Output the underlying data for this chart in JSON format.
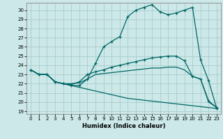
{
  "xlabel": "Humidex (Indice chaleur)",
  "bg_color": "#cce8e8",
  "grid_color": "#aacccc",
  "line_color": "#006666",
  "xlim": [
    -0.5,
    23.5
  ],
  "ylim": [
    18.7,
    30.8
  ],
  "xticks": [
    0,
    1,
    2,
    3,
    4,
    5,
    6,
    7,
    8,
    9,
    10,
    11,
    12,
    13,
    14,
    15,
    16,
    17,
    18,
    19,
    20,
    21,
    22,
    23
  ],
  "yticks": [
    19,
    20,
    21,
    22,
    23,
    24,
    25,
    26,
    27,
    28,
    29,
    30
  ],
  "line1_x": [
    0,
    1,
    2,
    3,
    4,
    5,
    6,
    7,
    8,
    9,
    10,
    11,
    12,
    13,
    14,
    15,
    16,
    17,
    18,
    19,
    20,
    21,
    22,
    23
  ],
  "line1_y": [
    23.5,
    23.0,
    23.0,
    22.2,
    22.0,
    21.8,
    21.8,
    22.5,
    24.2,
    26.0,
    26.6,
    27.1,
    29.3,
    30.0,
    30.3,
    30.6,
    29.8,
    29.5,
    29.7,
    30.0,
    30.3,
    24.6,
    22.3,
    19.3
  ],
  "line1_markers": [
    0,
    1,
    2,
    3,
    4,
    5,
    6,
    7,
    8,
    9,
    10,
    11,
    12,
    13,
    14,
    15,
    16,
    17,
    18,
    19,
    20,
    21,
    22,
    23
  ],
  "line2_x": [
    0,
    1,
    2,
    3,
    4,
    5,
    6,
    7,
    8,
    9,
    10,
    11,
    12,
    13,
    14,
    15,
    16,
    17,
    18,
    19,
    20,
    21,
    22,
    23
  ],
  "line2_y": [
    23.5,
    23.0,
    23.0,
    22.2,
    22.0,
    21.9,
    22.2,
    23.0,
    23.3,
    23.5,
    23.8,
    24.0,
    24.2,
    24.4,
    24.6,
    24.8,
    24.9,
    25.0,
    25.0,
    24.5,
    22.8,
    22.5,
    20.1,
    19.4
  ],
  "line2_markers": [
    0,
    1,
    2,
    3,
    4,
    5,
    6,
    7,
    8,
    9,
    10,
    11,
    12,
    13,
    14,
    15,
    16,
    17,
    18,
    19,
    20,
    21,
    22,
    23
  ],
  "line3_x": [
    0,
    1,
    2,
    3,
    4,
    5,
    6,
    7,
    8,
    9,
    10,
    11,
    12,
    13,
    14,
    15,
    16,
    17,
    18,
    19,
    20,
    21,
    22,
    23
  ],
  "line3_y": [
    23.5,
    23.0,
    23.0,
    22.2,
    22.0,
    22.0,
    22.1,
    22.5,
    23.0,
    23.1,
    23.2,
    23.3,
    23.4,
    23.5,
    23.6,
    23.7,
    23.7,
    23.8,
    23.8,
    23.5,
    22.8,
    22.5,
    20.0,
    19.4
  ],
  "line4_x": [
    0,
    1,
    2,
    3,
    4,
    5,
    6,
    7,
    8,
    9,
    10,
    11,
    12,
    13,
    14,
    15,
    16,
    17,
    18,
    19,
    20,
    21,
    22,
    23
  ],
  "line4_y": [
    23.5,
    23.0,
    23.0,
    22.2,
    22.0,
    21.8,
    21.6,
    21.4,
    21.2,
    21.0,
    20.8,
    20.6,
    20.4,
    20.3,
    20.2,
    20.1,
    20.0,
    19.9,
    19.8,
    19.7,
    19.6,
    19.5,
    19.4,
    19.3
  ]
}
